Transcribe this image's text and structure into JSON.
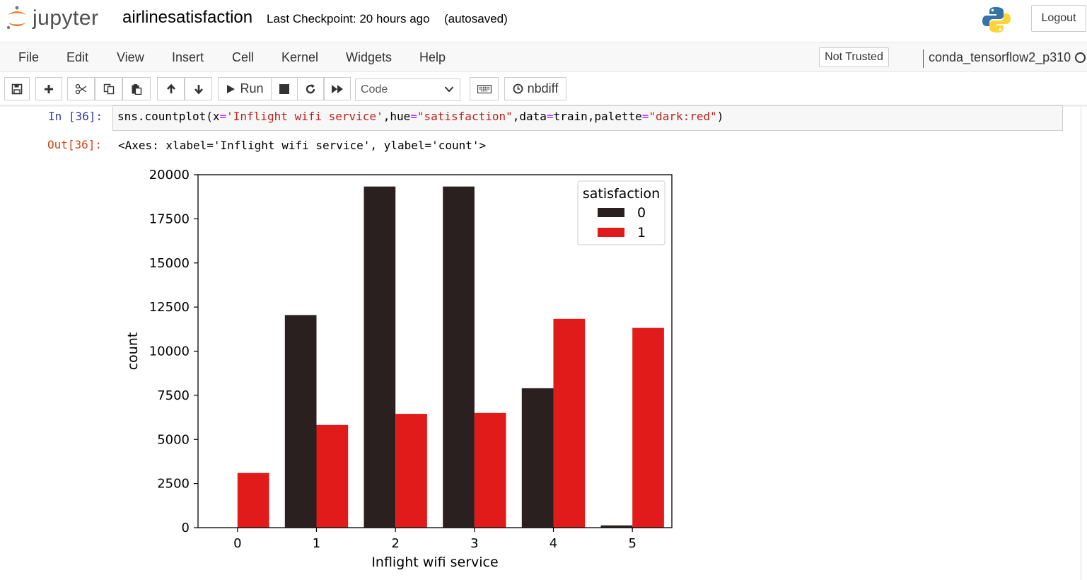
{
  "header": {
    "logo_text": "jupyter",
    "notebook_name": "airlinesatisfaction",
    "checkpoint": "Last Checkpoint: 20 hours ago",
    "autosave": "(autosaved)",
    "logout_label": "Logout"
  },
  "menubar": {
    "items": [
      "File",
      "Edit",
      "View",
      "Insert",
      "Cell",
      "Kernel",
      "Widgets",
      "Help"
    ],
    "trust_label": "Not Trusted",
    "kernel_name": "conda_tensorflow2_p310"
  },
  "toolbar": {
    "run_label": "Run",
    "cell_type": "Code",
    "nbdiff_label": "nbdiff"
  },
  "cell": {
    "in_prompt": "In [36]:",
    "out_prompt": "Out[36]:",
    "code": {
      "p1": "sns.countplot(x",
      "s1": "'Inflight wifi service'",
      "p2": ",hue",
      "s2": "\"satisfaction\"",
      "p3": ",data",
      "p4": "train,palette",
      "s3": "\"dark:red\"",
      "p5": ")",
      "op": "="
    },
    "output_text": "<Axes: xlabel='Inflight wifi service', ylabel='count'>"
  },
  "chart_data": {
    "type": "bar",
    "categories": [
      "0",
      "1",
      "2",
      "3",
      "4",
      "5"
    ],
    "series": [
      {
        "name": "0",
        "color": "#2b2020",
        "values": [
          0,
          12050,
          19330,
          19330,
          7900,
          130
        ]
      },
      {
        "name": "1",
        "color": "#e11a1a",
        "values": [
          3100,
          5820,
          6450,
          6500,
          11830,
          11320
        ]
      }
    ],
    "xlabel": "Inflight wifi service",
    "ylabel": "count",
    "ylim": [
      0,
      20000
    ],
    "yticks": [
      0,
      2500,
      5000,
      7500,
      10000,
      12500,
      15000,
      17500,
      20000
    ],
    "legend_title": "satisfaction",
    "legend_position": "top-right",
    "grid": false
  }
}
